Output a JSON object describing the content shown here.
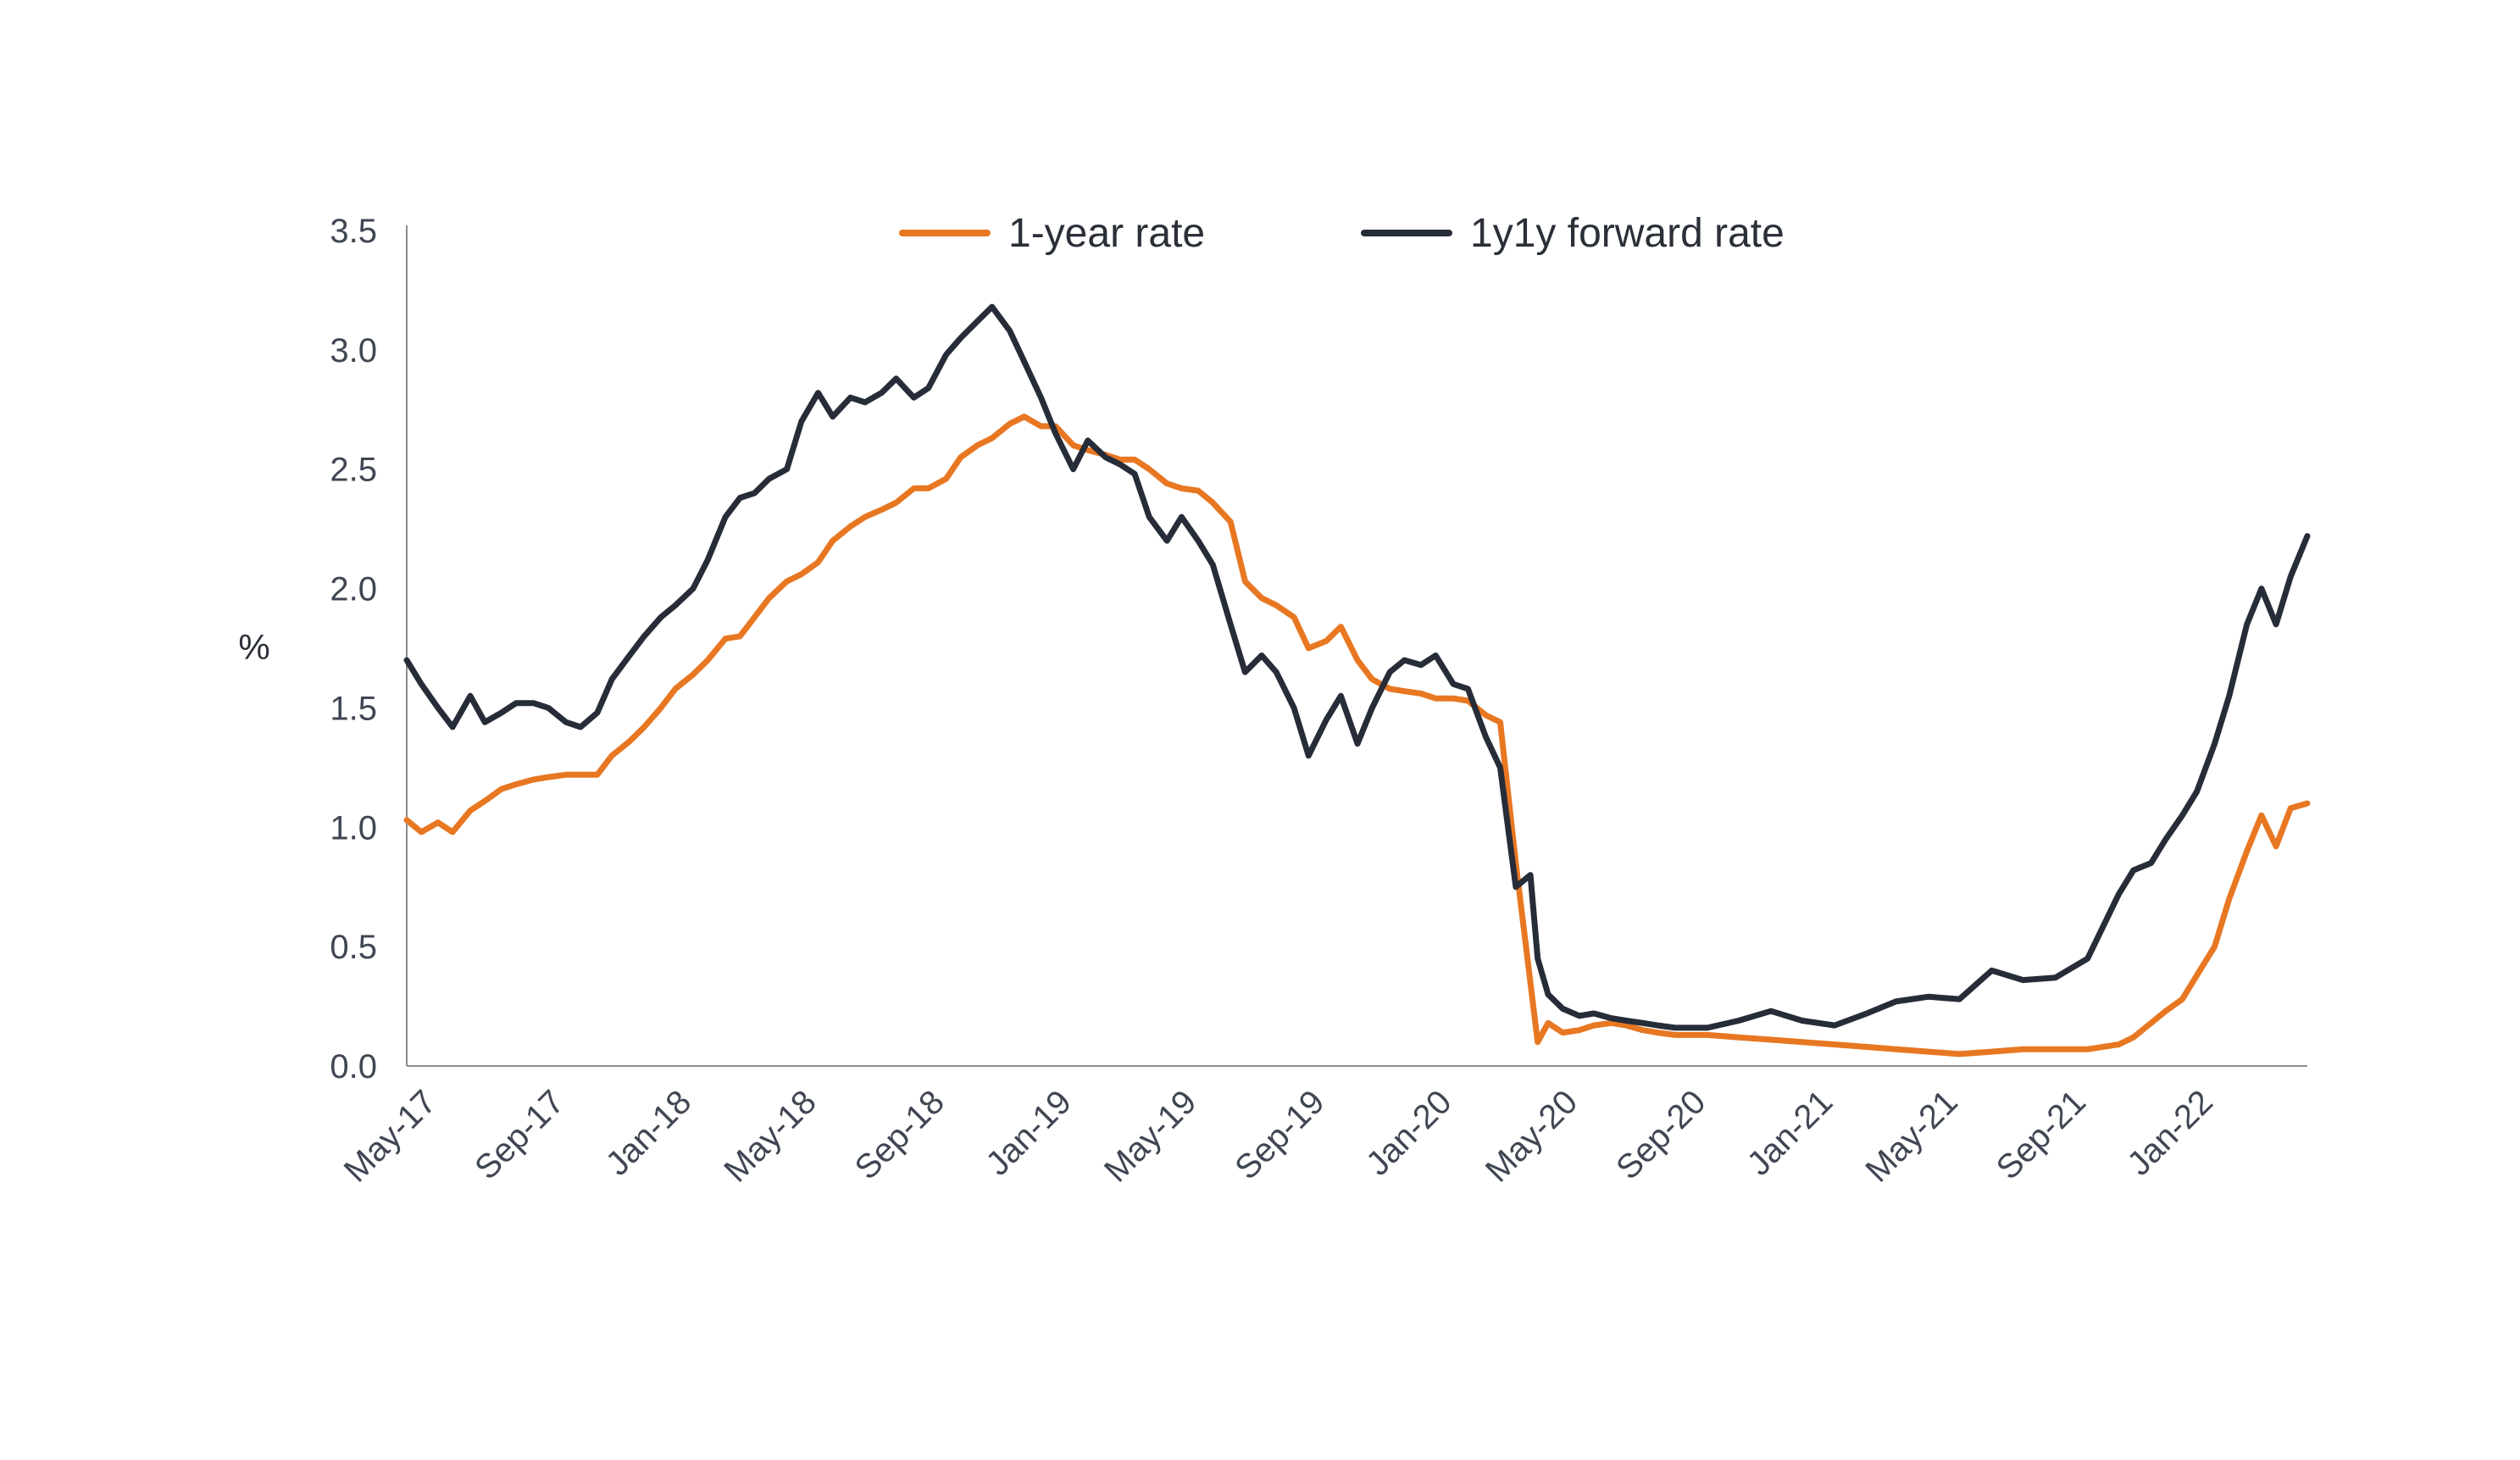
{
  "colors": {
    "one_year": "#e87722",
    "forward": "#262c38",
    "axis": "#8c8c8c",
    "text": "#404653"
  },
  "chart_data": {
    "type": "line",
    "title": "",
    "xlabel": "",
    "ylabel": "%",
    "ylim": [
      0,
      3.5
    ],
    "yticks": [
      "0.0",
      "0.5",
      "1.0",
      "1.5",
      "2.0",
      "2.5",
      "3.0",
      "3.5"
    ],
    "x_range": [
      "2017-04-01",
      "2022-03-31"
    ],
    "x_ticks": [
      "May-17",
      "Sep-17",
      "Jan-18",
      "May-18",
      "Sep-18",
      "Jan-19",
      "May-19",
      "Sep-19",
      "Jan-20",
      "May-20",
      "Sep-20",
      "Jan-21",
      "May-21",
      "Sep-21",
      "Jan-22"
    ],
    "grid": false,
    "legend_position": "top",
    "series": [
      {
        "name": "1-year rate",
        "color": "#e87722",
        "points": [
          [
            "2017-04-01",
            1.03
          ],
          [
            "2017-04-15",
            0.98
          ],
          [
            "2017-05-01",
            1.02
          ],
          [
            "2017-05-15",
            0.98
          ],
          [
            "2017-06-01",
            1.07
          ],
          [
            "2017-06-15",
            1.11
          ],
          [
            "2017-07-01",
            1.16
          ],
          [
            "2017-07-15",
            1.18
          ],
          [
            "2017-08-01",
            1.2
          ],
          [
            "2017-08-15",
            1.21
          ],
          [
            "2017-09-01",
            1.22
          ],
          [
            "2017-09-15",
            1.22
          ],
          [
            "2017-10-01",
            1.22
          ],
          [
            "2017-10-15",
            1.3
          ],
          [
            "2017-11-01",
            1.36
          ],
          [
            "2017-11-15",
            1.42
          ],
          [
            "2017-12-01",
            1.5
          ],
          [
            "2017-12-15",
            1.58
          ],
          [
            "2018-01-01",
            1.64
          ],
          [
            "2018-01-15",
            1.7
          ],
          [
            "2018-02-01",
            1.79
          ],
          [
            "2018-02-15",
            1.8
          ],
          [
            "2018-03-01",
            1.88
          ],
          [
            "2018-03-15",
            1.96
          ],
          [
            "2018-04-01",
            2.03
          ],
          [
            "2018-04-15",
            2.06
          ],
          [
            "2018-05-01",
            2.11
          ],
          [
            "2018-05-15",
            2.2
          ],
          [
            "2018-06-01",
            2.26
          ],
          [
            "2018-06-15",
            2.3
          ],
          [
            "2018-07-01",
            2.33
          ],
          [
            "2018-07-15",
            2.36
          ],
          [
            "2018-08-01",
            2.42
          ],
          [
            "2018-08-15",
            2.42
          ],
          [
            "2018-09-01",
            2.46
          ],
          [
            "2018-09-15",
            2.55
          ],
          [
            "2018-10-01",
            2.6
          ],
          [
            "2018-10-15",
            2.63
          ],
          [
            "2018-11-01",
            2.69
          ],
          [
            "2018-11-15",
            2.72
          ],
          [
            "2018-12-01",
            2.68
          ],
          [
            "2018-12-15",
            2.68
          ],
          [
            "2019-01-01",
            2.6
          ],
          [
            "2019-01-15",
            2.58
          ],
          [
            "2019-02-01",
            2.56
          ],
          [
            "2019-02-15",
            2.54
          ],
          [
            "2019-03-01",
            2.54
          ],
          [
            "2019-03-15",
            2.5
          ],
          [
            "2019-04-01",
            2.44
          ],
          [
            "2019-04-15",
            2.42
          ],
          [
            "2019-05-01",
            2.41
          ],
          [
            "2019-05-15",
            2.36
          ],
          [
            "2019-06-01",
            2.28
          ],
          [
            "2019-06-15",
            2.03
          ],
          [
            "2019-07-01",
            1.96
          ],
          [
            "2019-07-15",
            1.93
          ],
          [
            "2019-08-01",
            1.88
          ],
          [
            "2019-08-15",
            1.75
          ],
          [
            "2019-09-01",
            1.78
          ],
          [
            "2019-09-15",
            1.84
          ],
          [
            "2019-10-01",
            1.7
          ],
          [
            "2019-10-15",
            1.62
          ],
          [
            "2019-11-01",
            1.58
          ],
          [
            "2019-11-15",
            1.57
          ],
          [
            "2019-12-01",
            1.56
          ],
          [
            "2019-12-15",
            1.54
          ],
          [
            "2020-01-01",
            1.54
          ],
          [
            "2020-01-15",
            1.53
          ],
          [
            "2020-02-01",
            1.47
          ],
          [
            "2020-02-15",
            1.44
          ],
          [
            "2020-03-01",
            0.85
          ],
          [
            "2020-03-15",
            0.35
          ],
          [
            "2020-03-22",
            0.1
          ],
          [
            "2020-04-01",
            0.18
          ],
          [
            "2020-04-15",
            0.14
          ],
          [
            "2020-05-01",
            0.15
          ],
          [
            "2020-05-15",
            0.17
          ],
          [
            "2020-06-01",
            0.18
          ],
          [
            "2020-06-15",
            0.17
          ],
          [
            "2020-07-01",
            0.15
          ],
          [
            "2020-07-15",
            0.14
          ],
          [
            "2020-08-01",
            0.13
          ],
          [
            "2020-09-01",
            0.13
          ],
          [
            "2020-10-01",
            0.12
          ],
          [
            "2020-11-01",
            0.11
          ],
          [
            "2020-12-01",
            0.1
          ],
          [
            "2021-01-01",
            0.09
          ],
          [
            "2021-02-01",
            0.08
          ],
          [
            "2021-03-01",
            0.07
          ],
          [
            "2021-04-01",
            0.06
          ],
          [
            "2021-05-01",
            0.05
          ],
          [
            "2021-06-01",
            0.06
          ],
          [
            "2021-07-01",
            0.07
          ],
          [
            "2021-08-01",
            0.07
          ],
          [
            "2021-09-01",
            0.07
          ],
          [
            "2021-10-01",
            0.09
          ],
          [
            "2021-10-15",
            0.12
          ],
          [
            "2021-11-01",
            0.18
          ],
          [
            "2021-11-15",
            0.23
          ],
          [
            "2021-12-01",
            0.28
          ],
          [
            "2021-12-15",
            0.38
          ],
          [
            "2022-01-01",
            0.5
          ],
          [
            "2022-01-15",
            0.7
          ],
          [
            "2022-02-01",
            0.9
          ],
          [
            "2022-02-15",
            1.05
          ],
          [
            "2022-03-01",
            0.92
          ],
          [
            "2022-03-15",
            1.08
          ],
          [
            "2022-03-31",
            1.1
          ]
        ]
      },
      {
        "name": "1y1y forward rate",
        "color": "#262c38",
        "points": [
          [
            "2017-04-01",
            1.7
          ],
          [
            "2017-04-15",
            1.6
          ],
          [
            "2017-05-01",
            1.5
          ],
          [
            "2017-05-15",
            1.42
          ],
          [
            "2017-06-01",
            1.55
          ],
          [
            "2017-06-15",
            1.44
          ],
          [
            "2017-07-01",
            1.48
          ],
          [
            "2017-07-15",
            1.52
          ],
          [
            "2017-08-01",
            1.52
          ],
          [
            "2017-08-15",
            1.5
          ],
          [
            "2017-09-01",
            1.44
          ],
          [
            "2017-09-15",
            1.42
          ],
          [
            "2017-10-01",
            1.48
          ],
          [
            "2017-10-15",
            1.62
          ],
          [
            "2017-11-01",
            1.72
          ],
          [
            "2017-11-15",
            1.8
          ],
          [
            "2017-12-01",
            1.88
          ],
          [
            "2017-12-15",
            1.93
          ],
          [
            "2018-01-01",
            2.0
          ],
          [
            "2018-01-15",
            2.12
          ],
          [
            "2018-02-01",
            2.3
          ],
          [
            "2018-02-15",
            2.38
          ],
          [
            "2018-03-01",
            2.4
          ],
          [
            "2018-03-15",
            2.46
          ],
          [
            "2018-04-01",
            2.5
          ],
          [
            "2018-04-15",
            2.7
          ],
          [
            "2018-05-01",
            2.82
          ],
          [
            "2018-05-15",
            2.72
          ],
          [
            "2018-06-01",
            2.8
          ],
          [
            "2018-06-15",
            2.78
          ],
          [
            "2018-07-01",
            2.82
          ],
          [
            "2018-07-15",
            2.88
          ],
          [
            "2018-08-01",
            2.8
          ],
          [
            "2018-08-15",
            2.84
          ],
          [
            "2018-09-01",
            2.98
          ],
          [
            "2018-09-15",
            3.05
          ],
          [
            "2018-10-01",
            3.12
          ],
          [
            "2018-10-15",
            3.18
          ],
          [
            "2018-11-01",
            3.08
          ],
          [
            "2018-11-15",
            2.95
          ],
          [
            "2018-12-01",
            2.8
          ],
          [
            "2018-12-15",
            2.65
          ],
          [
            "2019-01-01",
            2.5
          ],
          [
            "2019-01-15",
            2.62
          ],
          [
            "2019-02-01",
            2.55
          ],
          [
            "2019-02-15",
            2.52
          ],
          [
            "2019-03-01",
            2.48
          ],
          [
            "2019-03-15",
            2.3
          ],
          [
            "2019-04-01",
            2.2
          ],
          [
            "2019-04-15",
            2.3
          ],
          [
            "2019-05-01",
            2.2
          ],
          [
            "2019-05-15",
            2.1
          ],
          [
            "2019-06-01",
            1.85
          ],
          [
            "2019-06-15",
            1.65
          ],
          [
            "2019-07-01",
            1.72
          ],
          [
            "2019-07-15",
            1.65
          ],
          [
            "2019-08-01",
            1.5
          ],
          [
            "2019-08-15",
            1.3
          ],
          [
            "2019-09-01",
            1.45
          ],
          [
            "2019-09-15",
            1.55
          ],
          [
            "2019-10-01",
            1.35
          ],
          [
            "2019-10-15",
            1.5
          ],
          [
            "2019-11-01",
            1.65
          ],
          [
            "2019-11-15",
            1.7
          ],
          [
            "2019-12-01",
            1.68
          ],
          [
            "2019-12-15",
            1.72
          ],
          [
            "2020-01-01",
            1.6
          ],
          [
            "2020-01-15",
            1.58
          ],
          [
            "2020-02-01",
            1.38
          ],
          [
            "2020-02-15",
            1.25
          ],
          [
            "2020-03-01",
            0.75
          ],
          [
            "2020-03-15",
            0.8
          ],
          [
            "2020-03-22",
            0.45
          ],
          [
            "2020-04-01",
            0.3
          ],
          [
            "2020-04-15",
            0.24
          ],
          [
            "2020-05-01",
            0.21
          ],
          [
            "2020-05-15",
            0.22
          ],
          [
            "2020-06-01",
            0.2
          ],
          [
            "2020-06-15",
            0.19
          ],
          [
            "2020-07-01",
            0.18
          ],
          [
            "2020-07-15",
            0.17
          ],
          [
            "2020-08-01",
            0.16
          ],
          [
            "2020-09-01",
            0.16
          ],
          [
            "2020-10-01",
            0.19
          ],
          [
            "2020-11-01",
            0.23
          ],
          [
            "2020-12-01",
            0.19
          ],
          [
            "2021-01-01",
            0.17
          ],
          [
            "2021-02-01",
            0.22
          ],
          [
            "2021-03-01",
            0.27
          ],
          [
            "2021-04-01",
            0.29
          ],
          [
            "2021-05-01",
            0.28
          ],
          [
            "2021-06-01",
            0.4
          ],
          [
            "2021-07-01",
            0.36
          ],
          [
            "2021-08-01",
            0.37
          ],
          [
            "2021-09-01",
            0.45
          ],
          [
            "2021-10-01",
            0.72
          ],
          [
            "2021-10-15",
            0.82
          ],
          [
            "2021-11-01",
            0.85
          ],
          [
            "2021-11-15",
            0.95
          ],
          [
            "2021-12-01",
            1.05
          ],
          [
            "2021-12-15",
            1.15
          ],
          [
            "2022-01-01",
            1.35
          ],
          [
            "2022-01-15",
            1.55
          ],
          [
            "2022-02-01",
            1.85
          ],
          [
            "2022-02-15",
            2.0
          ],
          [
            "2022-03-01",
            1.85
          ],
          [
            "2022-03-15",
            2.05
          ],
          [
            "2022-03-31",
            2.22
          ]
        ]
      }
    ]
  }
}
